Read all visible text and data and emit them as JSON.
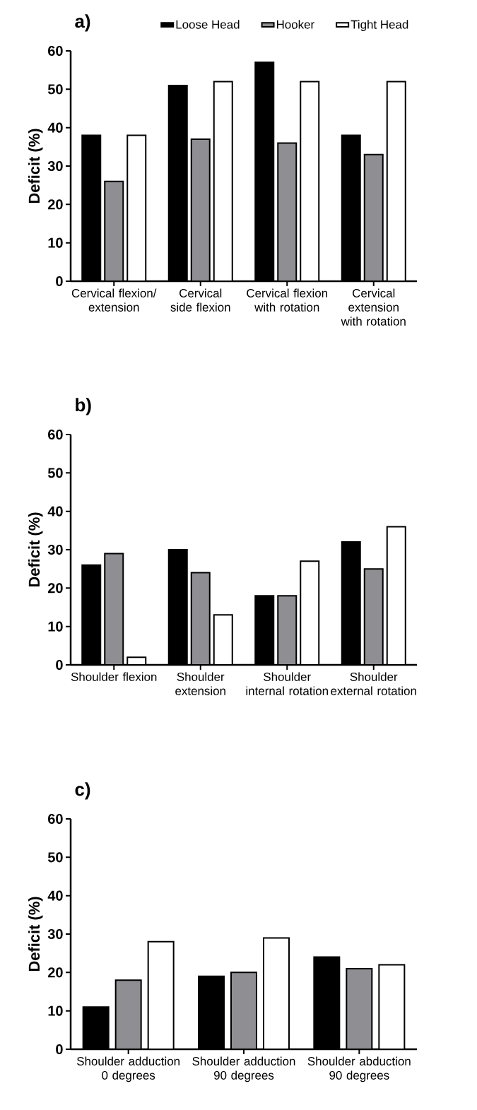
{
  "chart_data": [
    {
      "type": "bar",
      "title": "a)",
      "ylabel": "Deficit (%)",
      "legend": "top",
      "categories": [
        "Cervical flexion/ extension",
        "Cervical side flexion",
        "Cervical flexion with rotation",
        "Cervical extension with rotation"
      ],
      "series": [
        {
          "name": "Loose Head",
          "color": "#000000",
          "values": [
            38,
            51,
            57,
            38
          ]
        },
        {
          "name": "Hooker",
          "color": "#8e8e93",
          "values": [
            26,
            37,
            36,
            33
          ]
        },
        {
          "name": "Tight Head",
          "color": "#ffffff",
          "values": [
            38,
            52,
            52,
            52
          ]
        }
      ],
      "ylim": [
        0,
        60
      ],
      "yticks": [
        0,
        10,
        20,
        30,
        40,
        50,
        60
      ]
    },
    {
      "type": "bar",
      "title": "b)",
      "ylabel": "Deficit (%)",
      "categories": [
        "Shoulder flexion",
        "Shoulder extension",
        "Shoulder internal rotation",
        "Shoulder external rotation"
      ],
      "series": [
        {
          "color": "#000000",
          "values": [
            26,
            30,
            18,
            32
          ]
        },
        {
          "color": "#8e8e93",
          "values": [
            29,
            24,
            18,
            25
          ]
        },
        {
          "color": "#ffffff",
          "values": [
            2,
            13,
            27,
            36
          ]
        }
      ],
      "ylim": [
        0,
        60
      ],
      "yticks": [
        0,
        10,
        20,
        30,
        40,
        50,
        60
      ]
    },
    {
      "type": "bar",
      "title": "c)",
      "ylabel": "Deficit (%)",
      "categories": [
        "Shoulder adduction 0 degrees",
        "Shoulder adduction 90 degrees",
        "Shoulder abduction 90 degrees"
      ],
      "series": [
        {
          "color": "#000000",
          "values": [
            11,
            19,
            24
          ]
        },
        {
          "color": "#8e8e93",
          "values": [
            18,
            20,
            21
          ]
        },
        {
          "color": "#ffffff",
          "values": [
            28,
            29,
            22
          ]
        }
      ],
      "ylim": [
        0,
        60
      ],
      "yticks": [
        0,
        10,
        20,
        30,
        40,
        50,
        60
      ]
    }
  ]
}
